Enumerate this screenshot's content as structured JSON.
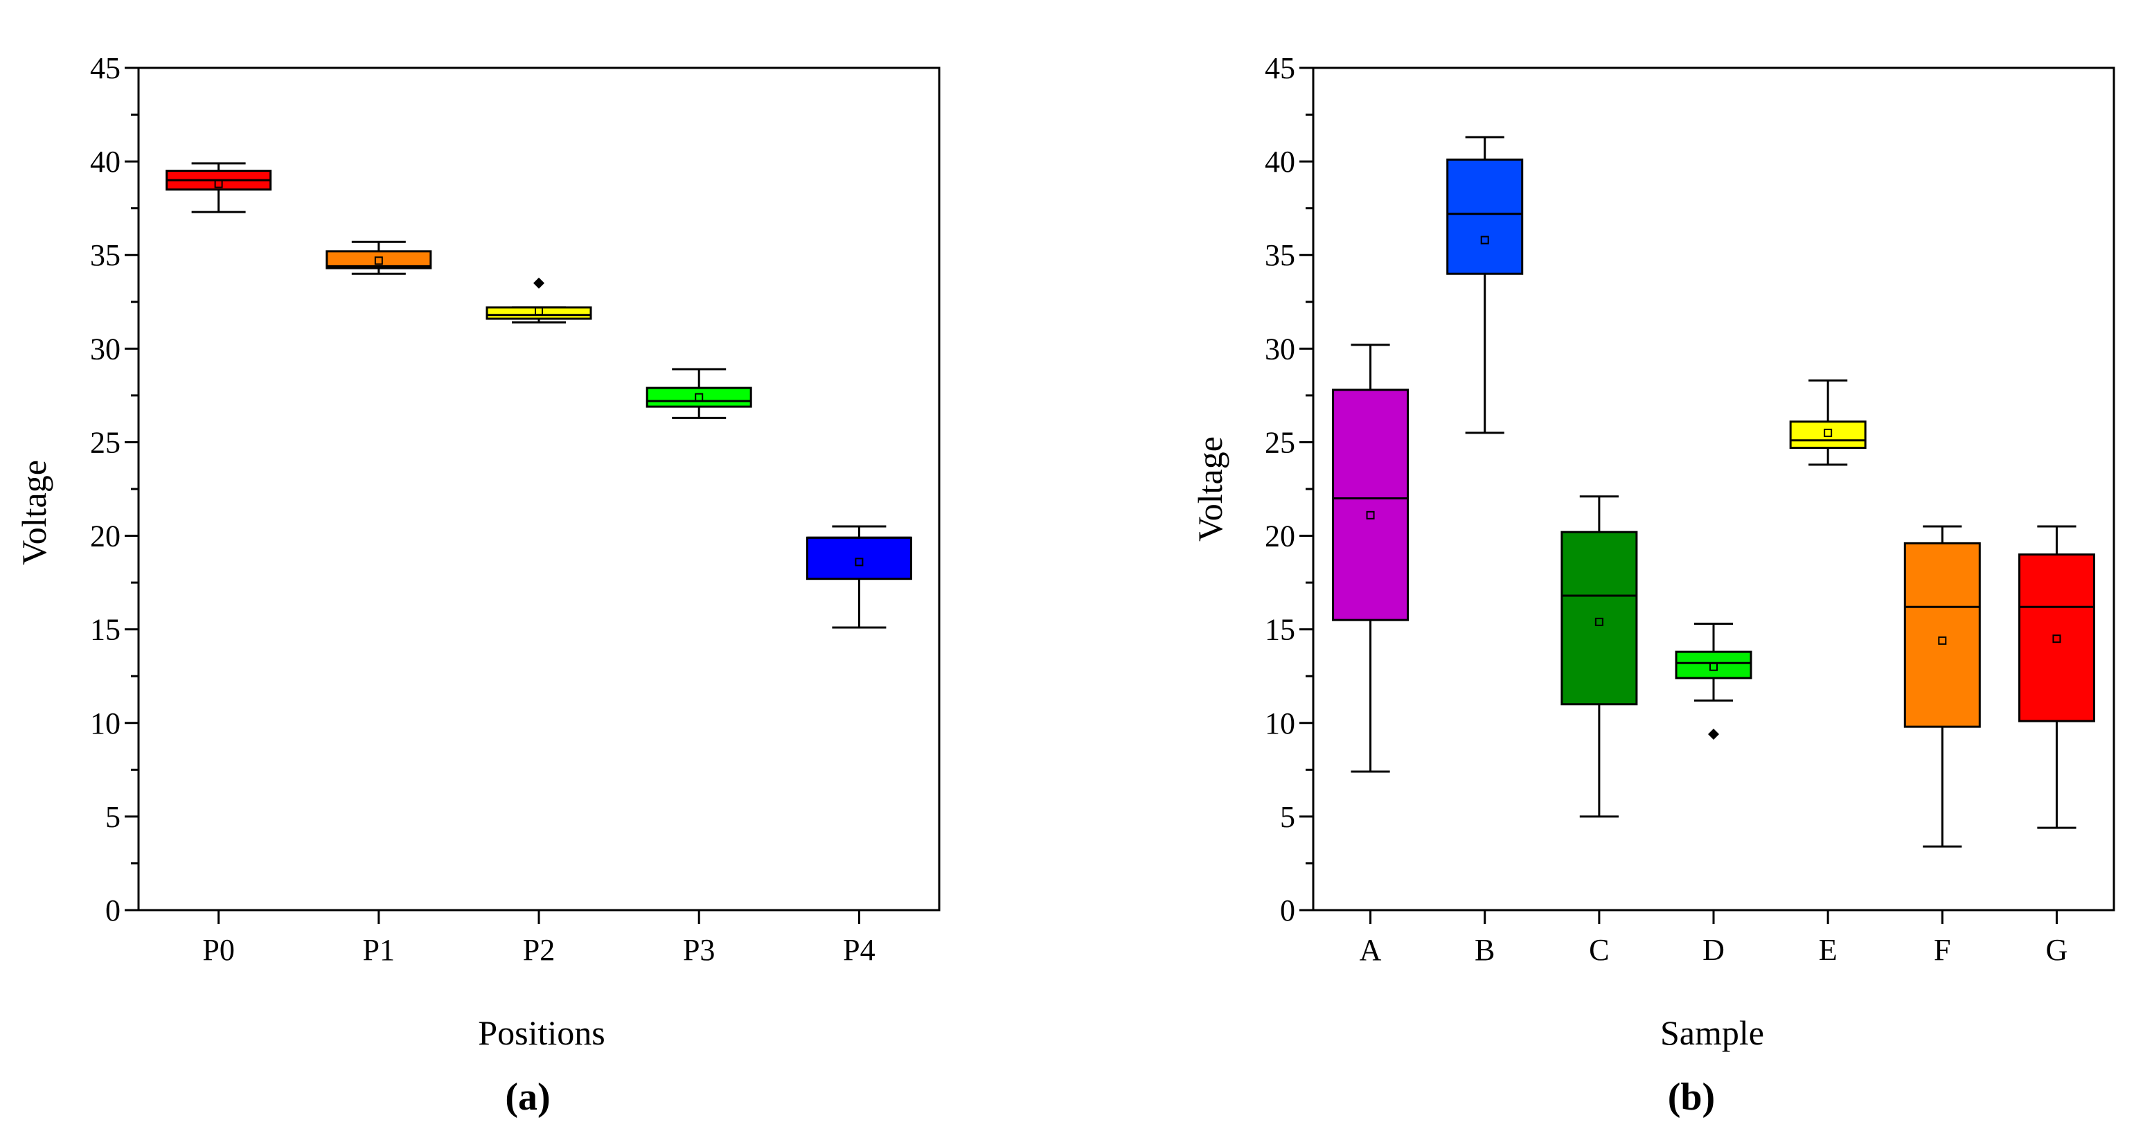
{
  "chart_data": [
    {
      "type": "box",
      "panel_label": "(a)",
      "xlabel": "Positions",
      "ylabel": "Voltage",
      "ylim": [
        0,
        45
      ],
      "yticks": [
        0,
        5,
        10,
        15,
        20,
        25,
        30,
        35,
        40,
        45
      ],
      "grid": false,
      "categories": [
        "P0",
        "P1",
        "P2",
        "P3",
        "P4"
      ],
      "boxes": [
        {
          "name": "P0",
          "color": "#ff0000",
          "whisker_low": 37.3,
          "q1": 38.5,
          "median": 39.0,
          "q3": 39.5,
          "whisker_high": 39.9,
          "mean": 38.8,
          "outliers": []
        },
        {
          "name": "P1",
          "color": "#ff7f00",
          "whisker_low": 34.0,
          "q1": 34.3,
          "median": 34.4,
          "q3": 35.2,
          "whisker_high": 35.7,
          "mean": 34.7,
          "outliers": []
        },
        {
          "name": "P2",
          "color": "#ffff00",
          "whisker_low": 31.4,
          "q1": 31.6,
          "median": 31.8,
          "q3": 32.2,
          "whisker_high": 32.2,
          "mean": 32.0,
          "outliers": [
            33.5
          ]
        },
        {
          "name": "P3",
          "color": "#00ff00",
          "whisker_low": 26.3,
          "q1": 26.9,
          "median": 27.2,
          "q3": 27.9,
          "whisker_high": 28.9,
          "mean": 27.4,
          "outliers": []
        },
        {
          "name": "P4",
          "color": "#0000ff",
          "whisker_low": 15.1,
          "q1": 17.7,
          "median": 19.9,
          "q3": 19.9,
          "whisker_high": 20.5,
          "mean": 18.6,
          "outliers": []
        }
      ]
    },
    {
      "type": "box",
      "panel_label": "(b)",
      "xlabel": "Sample",
      "ylabel": "Voltage",
      "ylim": [
        0,
        45
      ],
      "yticks": [
        0,
        5,
        10,
        15,
        20,
        25,
        30,
        35,
        40,
        45
      ],
      "grid": false,
      "categories": [
        "A",
        "B",
        "C",
        "D",
        "E",
        "F",
        "G"
      ],
      "boxes": [
        {
          "name": "A",
          "color": "#c000cc",
          "whisker_low": 7.4,
          "q1": 15.5,
          "median": 22.0,
          "q3": 27.8,
          "whisker_high": 30.2,
          "mean": 21.1,
          "outliers": []
        },
        {
          "name": "B",
          "color": "#0047ff",
          "whisker_low": 25.5,
          "q1": 34.0,
          "median": 37.2,
          "q3": 40.1,
          "whisker_high": 41.3,
          "mean": 35.8,
          "outliers": []
        },
        {
          "name": "C",
          "color": "#008b00",
          "whisker_low": 5.0,
          "q1": 11.0,
          "median": 16.8,
          "q3": 20.2,
          "whisker_high": 22.1,
          "mean": 15.4,
          "outliers": []
        },
        {
          "name": "D",
          "color": "#00ee00",
          "whisker_low": 11.2,
          "q1": 12.4,
          "median": 13.2,
          "q3": 13.8,
          "whisker_high": 15.3,
          "mean": 13.0,
          "outliers": [
            9.4
          ]
        },
        {
          "name": "E",
          "color": "#ffff00",
          "whisker_low": 23.8,
          "q1": 24.7,
          "median": 25.1,
          "q3": 26.1,
          "whisker_high": 28.3,
          "mean": 25.5,
          "outliers": []
        },
        {
          "name": "F",
          "color": "#ff8000",
          "whisker_low": 3.4,
          "q1": 9.8,
          "median": 16.2,
          "q3": 19.6,
          "whisker_high": 20.5,
          "mean": 14.4,
          "outliers": []
        },
        {
          "name": "G",
          "color": "#ff0000",
          "whisker_low": 4.4,
          "q1": 10.1,
          "median": 16.2,
          "q3": 19.0,
          "whisker_high": 20.5,
          "mean": 14.5,
          "outliers": []
        }
      ]
    }
  ]
}
